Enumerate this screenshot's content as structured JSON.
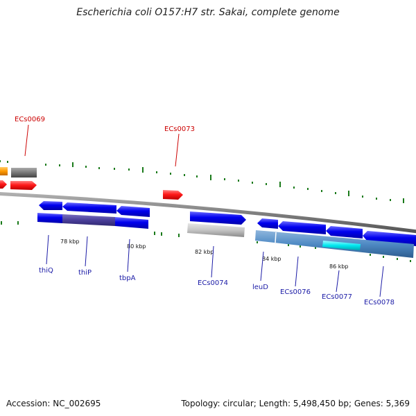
{
  "title": "Escherichia coli O157:H7 str. Sakai, complete genome",
  "accession": "Accession: NC_002695",
  "stats": "Topology: circular; Length: 5,498,450 bp; Genes: 5,369",
  "colors": {
    "forward_cds": "#0000ee",
    "reverse_cds": "#0000ee",
    "feature_label": "#1a1aa6",
    "highlight_label": "#cc0000",
    "red_feature": "#ff1a1a",
    "orange_feature": "#ff9900",
    "grey_feature": "#777777",
    "light_grey_feature": "#bdbdbd",
    "steel_blue": "#4f8ac4",
    "cyan_feature": "#00e8f0",
    "tick": "#1a7a1a",
    "backbone": "#808080"
  },
  "ticks": {
    "labels": [
      "78 kbp",
      "80 kbp",
      "82 kbp",
      "84 kbp",
      "86 kbp"
    ]
  },
  "red_labels": [
    "ECs0069",
    "ECs0073"
  ],
  "gene_labels": [
    "thiQ",
    "thiP",
    "tbpA",
    "ECs0074",
    "leuD",
    "ECs0076",
    "ECs0077",
    "ECs0078"
  ]
}
